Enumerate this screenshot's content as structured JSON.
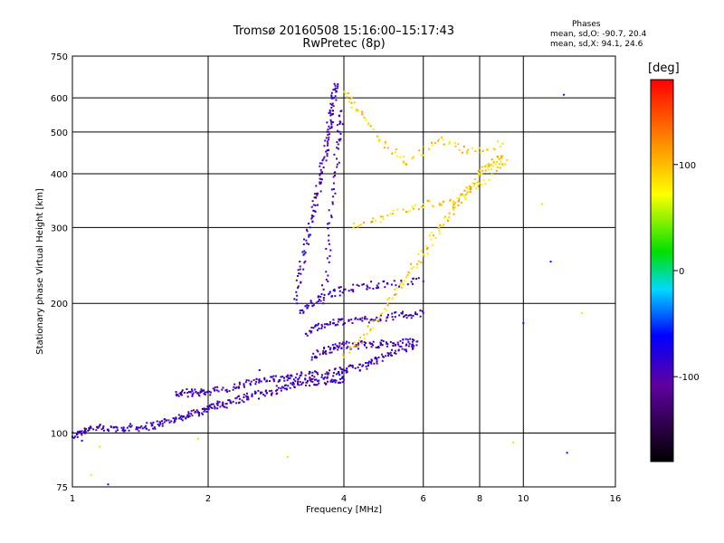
{
  "header": {
    "title_line1": "Tromsø 20160508 15:16:00–15:17:43",
    "title_line2": "RwPretec (8p)",
    "phases_title": "Phases",
    "phases_o": "mean, sd,O: -90.7, 20.4",
    "phases_x": "mean, sd,X:  94.1, 24.6"
  },
  "colorbar": {
    "label": "[deg]",
    "ticks": [
      "100",
      "0",
      "-100"
    ],
    "range": [
      -180,
      180
    ]
  },
  "chart_data": {
    "type": "scatter",
    "title": "Tromsø 20160508 15:16:00–15:17:43",
    "subtitle": "RwPretec (8p)",
    "xlabel": "Frequency [MHz]",
    "ylabel": "Stationary phase Virtual Height [km]",
    "xscale": "log",
    "yscale": "log",
    "xlim": [
      1,
      16
    ],
    "ylim": [
      75,
      750
    ],
    "x_ticks": [
      "1",
      "2",
      "4",
      "6",
      "8",
      "10",
      "16"
    ],
    "y_ticks": [
      "75",
      "100",
      "200",
      "300",
      "400",
      "500",
      "600",
      "750"
    ],
    "grid": true,
    "colorbar": {
      "label": "[deg]",
      "ticks": [
        100,
        0,
        -100
      ]
    },
    "series": [
      {
        "role": "O-mode echoes (phase around -90°)",
        "color_value": -95,
        "traces": [
          {
            "points": [
              [
                1.0,
                98
              ],
              [
                1.05,
                101
              ],
              [
                1.1,
                103
              ],
              [
                1.2,
                102
              ],
              [
                1.3,
                103
              ],
              [
                1.4,
                103
              ],
              [
                1.5,
                104
              ],
              [
                1.6,
                106
              ],
              [
                1.7,
                108
              ],
              [
                1.8,
                110
              ],
              [
                1.9,
                112
              ],
              [
                2.0,
                114
              ],
              [
                2.1,
                116
              ],
              [
                2.2,
                117
              ],
              [
                2.35,
                120
              ],
              [
                2.5,
                122
              ],
              [
                2.7,
                124
              ],
              [
                2.9,
                127
              ],
              [
                3.1,
                130
              ],
              [
                3.3,
                131
              ],
              [
                3.5,
                132
              ],
              [
                3.8,
                132
              ],
              [
                4.0,
                133
              ]
            ]
          },
          {
            "points": [
              [
                1.7,
                123
              ],
              [
                1.8,
                124
              ],
              [
                1.9,
                124
              ],
              [
                2.0,
                125
              ],
              [
                2.2,
                126
              ],
              [
                2.4,
                130
              ],
              [
                2.6,
                132
              ],
              [
                2.8,
                133
              ],
              [
                3.0,
                135
              ],
              [
                3.2,
                136
              ],
              [
                3.5,
                137
              ],
              [
                3.8,
                138
              ],
              [
                4.0,
                140
              ],
              [
                4.3,
                142
              ],
              [
                4.6,
                145
              ],
              [
                4.9,
                150
              ],
              [
                5.3,
                156
              ],
              [
                5.8,
                160
              ]
            ]
          },
          {
            "points": [
              [
                3.4,
                150
              ],
              [
                3.6,
                155
              ],
              [
                3.8,
                158
              ],
              [
                4.0,
                160
              ],
              [
                4.3,
                160
              ],
              [
                4.6,
                161
              ],
              [
                5.0,
                161
              ],
              [
                5.4,
                162
              ],
              [
                5.8,
                163
              ]
            ]
          },
          {
            "points": [
              [
                3.3,
                170
              ],
              [
                3.5,
                178
              ],
              [
                3.8,
                180
              ],
              [
                4.1,
                182
              ],
              [
                4.5,
                184
              ],
              [
                5.0,
                186
              ],
              [
                5.5,
                188
              ],
              [
                6.0,
                190
              ]
            ]
          },
          {
            "points": [
              [
                3.2,
                190
              ],
              [
                3.4,
                200
              ],
              [
                3.7,
                210
              ],
              [
                4.0,
                215
              ],
              [
                4.5,
                220
              ],
              [
                5.0,
                222
              ],
              [
                6.0,
                225
              ]
            ]
          },
          {
            "points": [
              [
                3.15,
                200
              ],
              [
                3.2,
                240
              ],
              [
                3.3,
                280
              ],
              [
                3.4,
                320
              ],
              [
                3.5,
                360
              ],
              [
                3.55,
                400
              ],
              [
                3.65,
                450
              ],
              [
                3.7,
                500
              ],
              [
                3.75,
                550
              ],
              [
                3.8,
                600
              ],
              [
                3.83,
                640
              ]
            ]
          },
          {
            "points": [
              [
                3.6,
                200
              ],
              [
                3.7,
                280
              ],
              [
                3.8,
                380
              ],
              [
                3.9,
                480
              ],
              [
                3.95,
                560
              ]
            ]
          }
        ]
      },
      {
        "role": "X-mode and scattered echoes (phase around +90°)",
        "color_value": 90,
        "traces": [
          {
            "points": [
              [
                4.0,
                150
              ],
              [
                4.5,
                170
              ],
              [
                5.0,
                200
              ],
              [
                5.5,
                230
              ],
              [
                6.0,
                260
              ],
              [
                6.5,
                300
              ],
              [
                7.0,
                330
              ],
              [
                7.5,
                360
              ],
              [
                8.0,
                400
              ],
              [
                8.5,
                420
              ],
              [
                9.0,
                440
              ]
            ]
          },
          {
            "points": [
              [
                4.2,
                300
              ],
              [
                5.0,
                320
              ],
              [
                6.0,
                340
              ],
              [
                7.0,
                345
              ],
              [
                8.0,
                380
              ],
              [
                9.2,
                430
              ]
            ]
          },
          {
            "points": [
              [
                4.0,
                620
              ],
              [
                4.3,
                560
              ],
              [
                4.8,
                480
              ],
              [
                5.5,
                420
              ],
              [
                6.5,
                480
              ],
              [
                7.5,
                450
              ],
              [
                9.0,
                470
              ]
            ]
          }
        ]
      },
      {
        "role": "isolated echoes",
        "points": [
          [
            12.3,
            610
          ],
          [
            11.0,
            340
          ],
          [
            11.5,
            250
          ],
          [
            13.5,
            190
          ],
          [
            10.0,
            180
          ],
          [
            9.5,
            95
          ],
          [
            12.5,
            90
          ],
          [
            3.0,
            88
          ],
          [
            1.2,
            76
          ],
          [
            1.1,
            80
          ],
          [
            1.05,
            96
          ],
          [
            1.15,
            93
          ],
          [
            2.6,
            140
          ],
          [
            1.9,
            97
          ]
        ]
      }
    ]
  }
}
